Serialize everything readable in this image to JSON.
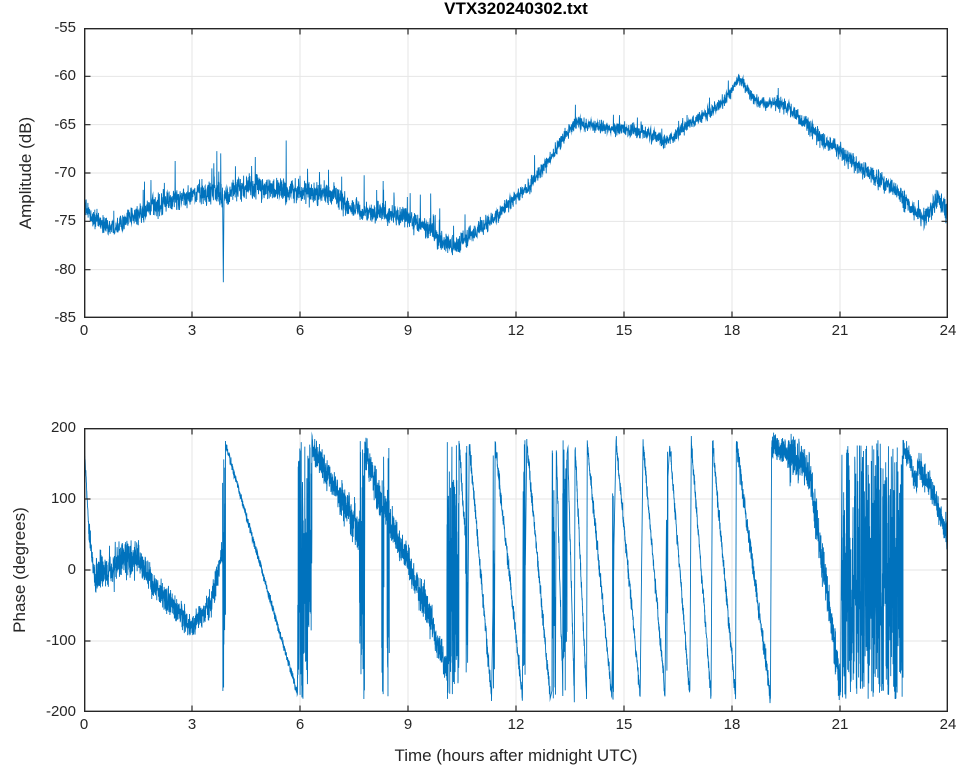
{
  "figure": {
    "background": "#ffffff"
  },
  "colors": {
    "line": "#0072BD",
    "grid": "#E6E6E6",
    "axis": "#262626",
    "tick_label": "#262626",
    "title": "#000000"
  },
  "chart_data": [
    {
      "type": "line",
      "title": "VTX320240302.txt",
      "xlabel": "",
      "ylabel": "Amplitude (dB)",
      "xlim": [
        0,
        24
      ],
      "ylim": [
        -85,
        -55
      ],
      "xticks": [
        0,
        3,
        6,
        9,
        12,
        15,
        18,
        21,
        24
      ],
      "yticks": [
        -85,
        -80,
        -75,
        -70,
        -65,
        -60,
        -55
      ],
      "grid": true,
      "legend": null,
      "line_color": "#0072BD",
      "series_name": "amplitude",
      "trend": [
        [
          0,
          -73.5
        ],
        [
          0.2,
          -74.5
        ],
        [
          0.5,
          -75.3
        ],
        [
          0.8,
          -75.6
        ],
        [
          1.2,
          -74.8
        ],
        [
          1.6,
          -74.2
        ],
        [
          2,
          -73.4
        ],
        [
          2.5,
          -72.8
        ],
        [
          3,
          -72.3
        ],
        [
          3.5,
          -72
        ],
        [
          3.86,
          -72.3
        ],
        [
          4.2,
          -71.8
        ],
        [
          4.7,
          -71.5
        ],
        [
          5.2,
          -71.5
        ],
        [
          5.7,
          -71.8
        ],
        [
          6.2,
          -72
        ],
        [
          6.7,
          -72.2
        ],
        [
          7,
          -72.3
        ],
        [
          7.3,
          -73.5
        ],
        [
          7.8,
          -74
        ],
        [
          8.3,
          -74.2
        ],
        [
          8.8,
          -74.6
        ],
        [
          9.3,
          -75.2
        ],
        [
          9.7,
          -76.2
        ],
        [
          10,
          -77.3
        ],
        [
          10.3,
          -77.6
        ],
        [
          10.6,
          -76.8
        ],
        [
          11,
          -75.6
        ],
        [
          11.5,
          -74.2
        ],
        [
          12,
          -72.6
        ],
        [
          12.4,
          -71.2
        ],
        [
          12.8,
          -69.3
        ],
        [
          13.1,
          -67.6
        ],
        [
          13.4,
          -65.9
        ],
        [
          13.7,
          -64.8
        ],
        [
          14,
          -65
        ],
        [
          14.5,
          -65.3
        ],
        [
          15,
          -65.5
        ],
        [
          15.5,
          -65.8
        ],
        [
          15.9,
          -66.3
        ],
        [
          16.15,
          -66.9
        ],
        [
          16.4,
          -66.1
        ],
        [
          16.7,
          -65.2
        ],
        [
          17,
          -64.5
        ],
        [
          17.5,
          -63.4
        ],
        [
          17.9,
          -62
        ],
        [
          18.2,
          -60.2
        ],
        [
          18.45,
          -61.5
        ],
        [
          18.7,
          -62.6
        ],
        [
          19,
          -62.9
        ],
        [
          19.3,
          -62.7
        ],
        [
          19.6,
          -63.4
        ],
        [
          20,
          -64.8
        ],
        [
          20.5,
          -66.5
        ],
        [
          21,
          -67.8
        ],
        [
          21.5,
          -69.3
        ],
        [
          22,
          -70.5
        ],
        [
          22.5,
          -71.8
        ],
        [
          23,
          -73.5
        ],
        [
          23.35,
          -74.8
        ],
        [
          23.7,
          -72.8
        ],
        [
          23.85,
          -73.2
        ],
        [
          24,
          -74.2
        ]
      ],
      "noise_halfwidth": [
        [
          0,
          1.6
        ],
        [
          1,
          1.5
        ],
        [
          2,
          1.9
        ],
        [
          3,
          2
        ],
        [
          5,
          2.2
        ],
        [
          7,
          1.9
        ],
        [
          8,
          1.7
        ],
        [
          9,
          1.9
        ],
        [
          10,
          1.9
        ],
        [
          11,
          1.4
        ],
        [
          12,
          1.3
        ],
        [
          13,
          1.2
        ],
        [
          14,
          1.1
        ],
        [
          15,
          1.1
        ],
        [
          16,
          1.2
        ],
        [
          17,
          1.1
        ],
        [
          18,
          1
        ],
        [
          19,
          1.2
        ],
        [
          20,
          1.4
        ],
        [
          21,
          1.5
        ],
        [
          22,
          1.6
        ],
        [
          23,
          1.7
        ],
        [
          24,
          1.7
        ]
      ],
      "spike_ranges": [
        {
          "x0": 0,
          "x1": 1.5,
          "p": 0.02,
          "mag": 2.5
        },
        {
          "x0": 1.5,
          "x1": 8,
          "p": 0.05,
          "mag": 4.5
        },
        {
          "x0": 8,
          "x1": 10.6,
          "p": 0.05,
          "mag": 4
        },
        {
          "x0": 12.2,
          "x1": 16,
          "p": 0.03,
          "mag": 2.2
        },
        {
          "x0": 16,
          "x1": 19.5,
          "p": 0.02,
          "mag": 1.8
        }
      ],
      "glitch": {
        "x": 3.87,
        "y": -81.3,
        "halfwidth": 0.02
      }
    },
    {
      "type": "line",
      "title": "",
      "xlabel": "Time (hours after midnight UTC)",
      "ylabel": "Phase (degrees)",
      "xlim": [
        0,
        24
      ],
      "ylim": [
        -200,
        200
      ],
      "xticks": [
        0,
        3,
        6,
        9,
        12,
        15,
        18,
        21,
        24
      ],
      "yticks": [
        -200,
        -100,
        0,
        100,
        200
      ],
      "grid": true,
      "legend": null,
      "line_color": "#0072BD",
      "series_name": "phase",
      "segments": [
        [
          0,
          0.13,
          183,
          60,
          10,
          0
        ],
        [
          0.13,
          0.32,
          60,
          -25,
          30,
          0
        ],
        [
          0.32,
          0.9,
          -5,
          0,
          45,
          0
        ],
        [
          0.9,
          1.55,
          10,
          18,
          40,
          0
        ],
        [
          1.55,
          1.85,
          8,
          -12,
          35,
          0
        ],
        [
          1.85,
          2.8,
          -15,
          -70,
          30,
          0
        ],
        [
          2.8,
          3.1,
          -75,
          -80,
          25,
          0
        ],
        [
          3.1,
          3.55,
          -75,
          -45,
          28,
          0
        ],
        [
          3.55,
          3.85,
          -40,
          25,
          30,
          0
        ],
        [
          3.85,
          3.93,
          -5,
          -5,
          188,
          1
        ],
        [
          3.93,
          5.93,
          178,
          -175,
          10,
          0
        ],
        [
          5.93,
          6.33,
          0,
          0,
          183,
          1
        ],
        [
          6.33,
          7.1,
          172,
          105,
          35,
          0
        ],
        [
          7.1,
          7.65,
          105,
          55,
          55,
          0
        ],
        [
          7.65,
          7.8,
          0,
          0,
          183,
          1
        ],
        [
          7.8,
          8.15,
          170,
          110,
          40,
          0
        ],
        [
          8.15,
          8.27,
          110,
          95,
          45,
          0
        ],
        [
          8.27,
          8.33,
          0,
          0,
          183,
          1
        ],
        [
          8.33,
          8.42,
          95,
          85,
          45,
          0
        ],
        [
          8.42,
          8.48,
          0,
          0,
          183,
          1
        ],
        [
          8.48,
          9.5,
          70,
          -50,
          40,
          0
        ],
        [
          9.5,
          10.08,
          -50,
          -145,
          38,
          0
        ],
        [
          10.08,
          10.42,
          0,
          0,
          183,
          1
        ],
        [
          10.42,
          10.6,
          178,
          40,
          20,
          0
        ],
        [
          10.6,
          10.66,
          0,
          0,
          183,
          1
        ],
        [
          10.7,
          11.32,
          178,
          -178,
          20,
          0
        ],
        [
          11.36,
          11.4,
          0,
          0,
          183,
          1
        ],
        [
          11.42,
          12.18,
          178,
          -178,
          20,
          0
        ],
        [
          12.2,
          12.26,
          0,
          0,
          183,
          1
        ],
        [
          12.3,
          12.95,
          178,
          -178,
          20,
          0
        ],
        [
          13,
          13.1,
          0,
          0,
          183,
          1
        ],
        [
          13.12,
          13.3,
          170,
          -170,
          25,
          0
        ],
        [
          13.3,
          13.42,
          0,
          0,
          183,
          1
        ],
        [
          13.44,
          13.62,
          165,
          -175,
          25,
          0
        ],
        [
          13.64,
          13.96,
          178,
          -178,
          20,
          0
        ],
        [
          13.98,
          14.66,
          178,
          -178,
          18,
          0
        ],
        [
          14.68,
          14.72,
          0,
          0,
          183,
          1
        ],
        [
          14.78,
          15.45,
          178,
          -178,
          18,
          0
        ],
        [
          15.53,
          16.14,
          178,
          -178,
          18,
          0
        ],
        [
          16.18,
          16.22,
          0,
          0,
          183,
          1
        ],
        [
          16.27,
          16.83,
          178,
          -178,
          18,
          0
        ],
        [
          16.87,
          17.42,
          178,
          -178,
          18,
          0
        ],
        [
          17.46,
          18.1,
          178,
          -178,
          20,
          0
        ],
        [
          18.12,
          19.07,
          178,
          -178,
          26,
          0
        ],
        [
          19.1,
          19.55,
          175,
          165,
          30,
          0
        ],
        [
          19.55,
          20.15,
          165,
          138,
          55,
          0
        ],
        [
          20.15,
          21.02,
          138,
          -168,
          52,
          0
        ],
        [
          21.05,
          22.75,
          0,
          0,
          183,
          1
        ],
        [
          22.75,
          23,
          172,
          150,
          28,
          0
        ],
        [
          23,
          23.15,
          135,
          122,
          30,
          0
        ],
        [
          23.15,
          23.55,
          150,
          112,
          32,
          0
        ],
        [
          23.55,
          24,
          110,
          45,
          33,
          0
        ]
      ]
    }
  ]
}
